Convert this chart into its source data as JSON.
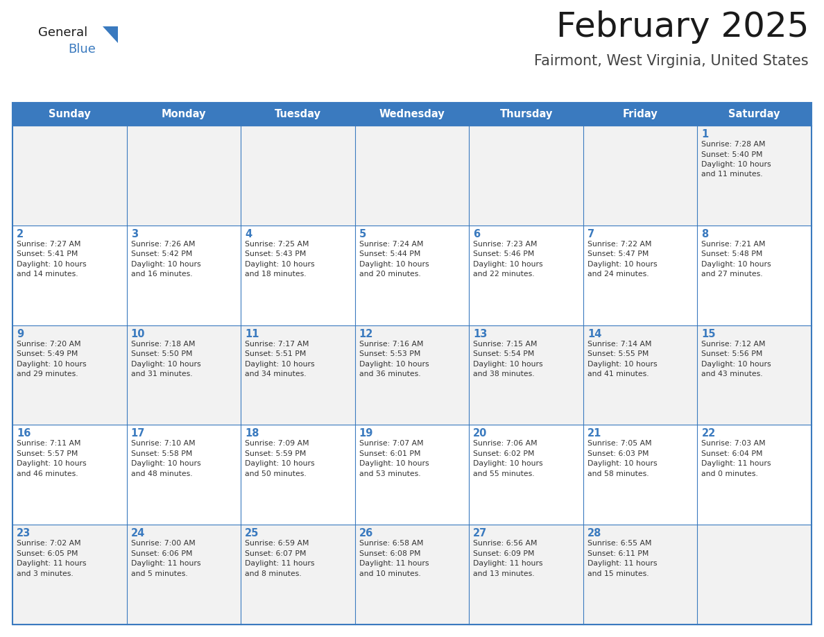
{
  "title": "February 2025",
  "subtitle": "Fairmont, West Virginia, United States",
  "days_of_week": [
    "Sunday",
    "Monday",
    "Tuesday",
    "Wednesday",
    "Thursday",
    "Friday",
    "Saturday"
  ],
  "header_bg": "#3a7abf",
  "header_text": "#ffffff",
  "odd_row_bg": "#f2f2f2",
  "even_row_bg": "#ffffff",
  "border_color": "#3a7abf",
  "day_number_color": "#3a7abf",
  "cell_text_color": "#333333",
  "title_color": "#1a1a1a",
  "subtitle_color": "#444444",
  "logo_general_color": "#1a1a1a",
  "logo_blue_color": "#3a7abf",
  "calendar": [
    [
      null,
      null,
      null,
      null,
      null,
      null,
      {
        "day": 1,
        "sunrise": "7:28 AM",
        "sunset": "5:40 PM",
        "daylight": "10 hours\nand 11 minutes."
      }
    ],
    [
      {
        "day": 2,
        "sunrise": "7:27 AM",
        "sunset": "5:41 PM",
        "daylight": "10 hours\nand 14 minutes."
      },
      {
        "day": 3,
        "sunrise": "7:26 AM",
        "sunset": "5:42 PM",
        "daylight": "10 hours\nand 16 minutes."
      },
      {
        "day": 4,
        "sunrise": "7:25 AM",
        "sunset": "5:43 PM",
        "daylight": "10 hours\nand 18 minutes."
      },
      {
        "day": 5,
        "sunrise": "7:24 AM",
        "sunset": "5:44 PM",
        "daylight": "10 hours\nand 20 minutes."
      },
      {
        "day": 6,
        "sunrise": "7:23 AM",
        "sunset": "5:46 PM",
        "daylight": "10 hours\nand 22 minutes."
      },
      {
        "day": 7,
        "sunrise": "7:22 AM",
        "sunset": "5:47 PM",
        "daylight": "10 hours\nand 24 minutes."
      },
      {
        "day": 8,
        "sunrise": "7:21 AM",
        "sunset": "5:48 PM",
        "daylight": "10 hours\nand 27 minutes."
      }
    ],
    [
      {
        "day": 9,
        "sunrise": "7:20 AM",
        "sunset": "5:49 PM",
        "daylight": "10 hours\nand 29 minutes."
      },
      {
        "day": 10,
        "sunrise": "7:18 AM",
        "sunset": "5:50 PM",
        "daylight": "10 hours\nand 31 minutes."
      },
      {
        "day": 11,
        "sunrise": "7:17 AM",
        "sunset": "5:51 PM",
        "daylight": "10 hours\nand 34 minutes."
      },
      {
        "day": 12,
        "sunrise": "7:16 AM",
        "sunset": "5:53 PM",
        "daylight": "10 hours\nand 36 minutes."
      },
      {
        "day": 13,
        "sunrise": "7:15 AM",
        "sunset": "5:54 PM",
        "daylight": "10 hours\nand 38 minutes."
      },
      {
        "day": 14,
        "sunrise": "7:14 AM",
        "sunset": "5:55 PM",
        "daylight": "10 hours\nand 41 minutes."
      },
      {
        "day": 15,
        "sunrise": "7:12 AM",
        "sunset": "5:56 PM",
        "daylight": "10 hours\nand 43 minutes."
      }
    ],
    [
      {
        "day": 16,
        "sunrise": "7:11 AM",
        "sunset": "5:57 PM",
        "daylight": "10 hours\nand 46 minutes."
      },
      {
        "day": 17,
        "sunrise": "7:10 AM",
        "sunset": "5:58 PM",
        "daylight": "10 hours\nand 48 minutes."
      },
      {
        "day": 18,
        "sunrise": "7:09 AM",
        "sunset": "5:59 PM",
        "daylight": "10 hours\nand 50 minutes."
      },
      {
        "day": 19,
        "sunrise": "7:07 AM",
        "sunset": "6:01 PM",
        "daylight": "10 hours\nand 53 minutes."
      },
      {
        "day": 20,
        "sunrise": "7:06 AM",
        "sunset": "6:02 PM",
        "daylight": "10 hours\nand 55 minutes."
      },
      {
        "day": 21,
        "sunrise": "7:05 AM",
        "sunset": "6:03 PM",
        "daylight": "10 hours\nand 58 minutes."
      },
      {
        "day": 22,
        "sunrise": "7:03 AM",
        "sunset": "6:04 PM",
        "daylight": "11 hours\nand 0 minutes."
      }
    ],
    [
      {
        "day": 23,
        "sunrise": "7:02 AM",
        "sunset": "6:05 PM",
        "daylight": "11 hours\nand 3 minutes."
      },
      {
        "day": 24,
        "sunrise": "7:00 AM",
        "sunset": "6:06 PM",
        "daylight": "11 hours\nand 5 minutes."
      },
      {
        "day": 25,
        "sunrise": "6:59 AM",
        "sunset": "6:07 PM",
        "daylight": "11 hours\nand 8 minutes."
      },
      {
        "day": 26,
        "sunrise": "6:58 AM",
        "sunset": "6:08 PM",
        "daylight": "11 hours\nand 10 minutes."
      },
      {
        "day": 27,
        "sunrise": "6:56 AM",
        "sunset": "6:09 PM",
        "daylight": "11 hours\nand 13 minutes."
      },
      {
        "day": 28,
        "sunrise": "6:55 AM",
        "sunset": "6:11 PM",
        "daylight": "11 hours\nand 15 minutes."
      },
      null
    ]
  ]
}
